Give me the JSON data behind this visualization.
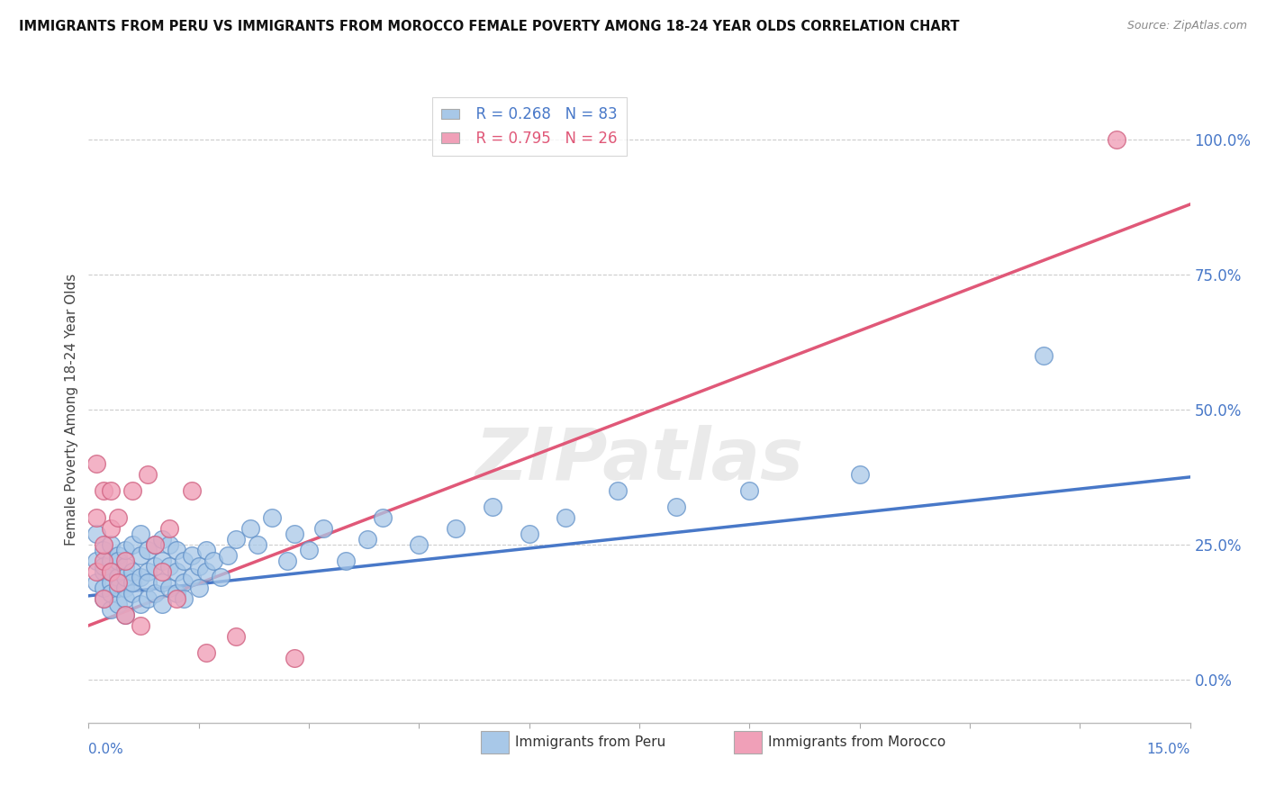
{
  "title": "IMMIGRANTS FROM PERU VS IMMIGRANTS FROM MOROCCO FEMALE POVERTY AMONG 18-24 YEAR OLDS CORRELATION CHART",
  "source": "Source: ZipAtlas.com",
  "ylabel": "Female Poverty Among 18-24 Year Olds",
  "right_yticks": [
    0.0,
    0.25,
    0.5,
    0.75,
    1.0
  ],
  "right_yticklabels": [
    "0.0%",
    "25.0%",
    "50.0%",
    "75.0%",
    "100.0%"
  ],
  "xlim": [
    0.0,
    0.15
  ],
  "ylim": [
    -0.08,
    1.08
  ],
  "peru_R": 0.268,
  "peru_N": 83,
  "morocco_R": 0.795,
  "morocco_N": 26,
  "peru_color": "#A8C8E8",
  "morocco_color": "#F0A0B8",
  "peru_edge_color": "#6090C8",
  "morocco_edge_color": "#D06080",
  "peru_line_color": "#4878C8",
  "morocco_line_color": "#E05878",
  "watermark": "ZIPatlas",
  "background_color": "#FFFFFF",
  "peru_scatter_x": [
    0.001,
    0.001,
    0.001,
    0.002,
    0.002,
    0.002,
    0.002,
    0.002,
    0.003,
    0.003,
    0.003,
    0.003,
    0.003,
    0.003,
    0.004,
    0.004,
    0.004,
    0.004,
    0.004,
    0.005,
    0.005,
    0.005,
    0.005,
    0.005,
    0.005,
    0.006,
    0.006,
    0.006,
    0.006,
    0.007,
    0.007,
    0.007,
    0.007,
    0.008,
    0.008,
    0.008,
    0.008,
    0.009,
    0.009,
    0.009,
    0.01,
    0.01,
    0.01,
    0.01,
    0.011,
    0.011,
    0.011,
    0.012,
    0.012,
    0.012,
    0.013,
    0.013,
    0.013,
    0.014,
    0.014,
    0.015,
    0.015,
    0.016,
    0.016,
    0.017,
    0.018,
    0.019,
    0.02,
    0.022,
    0.023,
    0.025,
    0.027,
    0.028,
    0.03,
    0.032,
    0.035,
    0.038,
    0.04,
    0.045,
    0.05,
    0.055,
    0.06,
    0.065,
    0.072,
    0.08,
    0.09,
    0.105,
    0.13
  ],
  "peru_scatter_y": [
    0.18,
    0.22,
    0.27,
    0.15,
    0.2,
    0.24,
    0.17,
    0.21,
    0.13,
    0.18,
    0.22,
    0.16,
    0.2,
    0.25,
    0.14,
    0.19,
    0.23,
    0.17,
    0.22,
    0.12,
    0.17,
    0.21,
    0.15,
    0.19,
    0.24,
    0.16,
    0.2,
    0.25,
    0.18,
    0.14,
    0.19,
    0.23,
    0.27,
    0.15,
    0.2,
    0.24,
    0.18,
    0.16,
    0.21,
    0.25,
    0.14,
    0.18,
    0.22,
    0.26,
    0.17,
    0.21,
    0.25,
    0.16,
    0.2,
    0.24,
    0.18,
    0.22,
    0.15,
    0.19,
    0.23,
    0.17,
    0.21,
    0.2,
    0.24,
    0.22,
    0.19,
    0.23,
    0.26,
    0.28,
    0.25,
    0.3,
    0.22,
    0.27,
    0.24,
    0.28,
    0.22,
    0.26,
    0.3,
    0.25,
    0.28,
    0.32,
    0.27,
    0.3,
    0.35,
    0.32,
    0.35,
    0.38,
    0.6
  ],
  "morocco_scatter_x": [
    0.001,
    0.001,
    0.001,
    0.002,
    0.002,
    0.002,
    0.002,
    0.003,
    0.003,
    0.003,
    0.004,
    0.004,
    0.005,
    0.005,
    0.006,
    0.007,
    0.008,
    0.009,
    0.01,
    0.011,
    0.012,
    0.014,
    0.016,
    0.02,
    0.028,
    0.14
  ],
  "morocco_scatter_y": [
    0.2,
    0.3,
    0.4,
    0.22,
    0.35,
    0.15,
    0.25,
    0.2,
    0.28,
    0.35,
    0.18,
    0.3,
    0.12,
    0.22,
    0.35,
    0.1,
    0.38,
    0.25,
    0.2,
    0.28,
    0.15,
    0.35,
    0.05,
    0.08,
    0.04,
    1.0
  ],
  "peru_line_x": [
    0.0,
    0.15
  ],
  "peru_line_y": [
    0.155,
    0.375
  ],
  "morocco_line_x": [
    0.0,
    0.15
  ],
  "morocco_line_y": [
    0.1,
    0.88
  ]
}
